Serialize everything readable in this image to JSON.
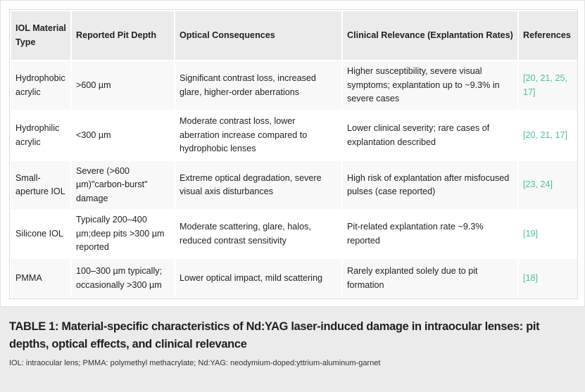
{
  "table": {
    "headers": [
      "IOL Material Type",
      "Reported Pit Depth",
      "Optical Consequences",
      "Clinical Relevance (Explantation Rates)",
      "References"
    ],
    "rows": [
      [
        "Hydrophobic acrylic",
        ">600 µm",
        "Significant contrast loss, increased glare, higher-order aberrations",
        "Higher susceptibility, severe visual symptoms; explantation up to ~9.3% in severe cases",
        "[20, 21, 25, 17]"
      ],
      [
        "Hydrophilic acrylic",
        "<300 µm",
        "Moderate contrast loss, lower aberration increase compared to hydrophobic lenses",
        "Lower clinical severity; rare cases of explantation described",
        "[20, 21, 17]"
      ],
      [
        "Small-aperture IOL",
        "Severe (>600 µm)\"carbon-burst\" damage",
        "Extreme optical degradation, severe visual axis disturbances",
        "High risk of explantation after misfocused pulses (case reported)",
        "[23, 24]"
      ],
      [
        "Silicone IOL",
        "Typically 200–400 µm;deep pits >300 µm reported",
        "Moderate scattering, glare, halos, reduced contrast sensitivity",
        "Pit-related explantation rate ~9.3% reported",
        "[19]"
      ],
      [
        "PMMA",
        "100–300 µm typically; occasionally >300 µm",
        "Lower optical impact, mild scattering",
        "Rarely explanted solely due to pit formation",
        "[18]"
      ]
    ]
  },
  "caption": {
    "title": "TABLE 1: Material-specific characteristics of Nd:YAG laser-induced damage in intraocular lenses: pit depths, optical effects, and clinical relevance",
    "note": "IOL: intraocular lens; PMMA: polymethyl methacrylate; Nd:YAG: neodymium-doped:yttrium-aluminum-garnet"
  },
  "colors": {
    "reference_link": "#4dbfa6",
    "header_bg": "#ebebeb",
    "caption_bg": "#ebebeb"
  }
}
